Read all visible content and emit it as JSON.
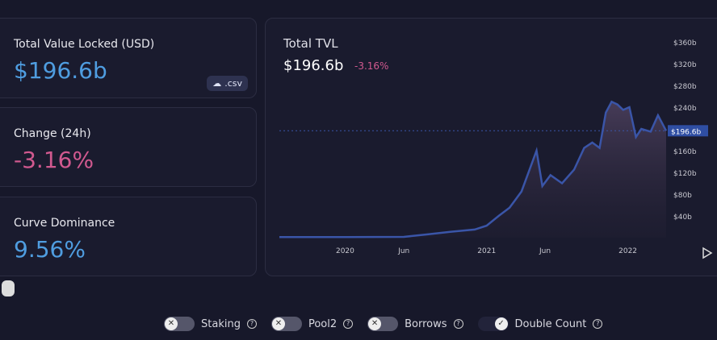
{
  "stats": [
    {
      "label": "Total Value Locked (USD)",
      "value": "$196.6b",
      "color": "#4f9de0"
    },
    {
      "label": "Change (24h)",
      "value": "-3.16%",
      "color": "#d1598f"
    },
    {
      "label": "Curve Dominance",
      "value": "9.56%",
      "color": "#4f9de0"
    }
  ],
  "csv_label": ".csv",
  "chart_title": "Total TVL",
  "chart_value": "$196.6b",
  "chart_change": "-3.16%",
  "chart_data": {
    "type": "area",
    "title": "Total TVL",
    "current_value_label": "$196.6b",
    "current_value": 196.6,
    "x_ticks": [
      "2020",
      "Jun",
      "2021",
      "Jun",
      "2022"
    ],
    "y_ticks": [
      "$40b",
      "$80b",
      "$120b",
      "$160b",
      "$240b",
      "$280b",
      "$320b",
      "$360b"
    ],
    "ylim": [
      0,
      360
    ],
    "xlim": [
      "2019-07-15",
      "2022-04-10"
    ],
    "line_color": "#3a55a8",
    "points": [
      [
        "2019-07-15",
        1
      ],
      [
        "2020-01-01",
        1
      ],
      [
        "2020-06-01",
        1.5
      ],
      [
        "2020-08-01",
        6
      ],
      [
        "2020-10-01",
        11
      ],
      [
        "2020-12-01",
        15
      ],
      [
        "2021-01-01",
        22
      ],
      [
        "2021-02-01",
        40
      ],
      [
        "2021-03-01",
        55
      ],
      [
        "2021-04-01",
        85
      ],
      [
        "2021-05-10",
        160
      ],
      [
        "2021-05-25",
        95
      ],
      [
        "2021-06-15",
        115
      ],
      [
        "2021-07-15",
        100
      ],
      [
        "2021-08-15",
        125
      ],
      [
        "2021-09-10",
        165
      ],
      [
        "2021-10-01",
        175
      ],
      [
        "2021-10-20",
        165
      ],
      [
        "2021-11-05",
        230
      ],
      [
        "2021-11-20",
        250
      ],
      [
        "2021-12-05",
        245
      ],
      [
        "2021-12-20",
        235
      ],
      [
        "2022-01-05",
        240
      ],
      [
        "2022-01-22",
        185
      ],
      [
        "2022-02-05",
        200
      ],
      [
        "2022-03-01",
        195
      ],
      [
        "2022-03-20",
        225
      ],
      [
        "2022-04-10",
        196.6
      ]
    ]
  },
  "toggles": [
    {
      "label": "Staking",
      "on": false
    },
    {
      "label": "Pool2",
      "on": false
    },
    {
      "label": "Borrows",
      "on": false
    },
    {
      "label": "Double Count",
      "on": true
    }
  ]
}
